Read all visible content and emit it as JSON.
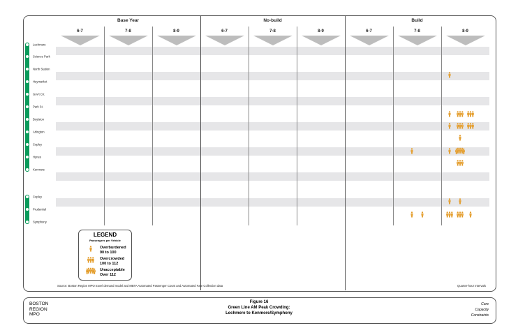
{
  "colors": {
    "line": "#0a9a5a",
    "icon": "#e39a25",
    "band": "#e6e6e8",
    "triangle": "#bdbdbd"
  },
  "groups": [
    {
      "label": "Base Year",
      "hours": [
        "6-7",
        "7-8",
        "8-9"
      ]
    },
    {
      "label": "No-build",
      "hours": [
        "6-7",
        "7-8",
        "8-9"
      ]
    },
    {
      "label": "Build",
      "hours": [
        "6-7",
        "7-8",
        "8-9"
      ]
    }
  ],
  "stations_main": [
    "Lechmere",
    "Science Park",
    "North Station",
    "Haymarket",
    "Gov't Ctr.",
    "Park St.",
    "Boylston",
    "Arlington",
    "Copley",
    "Hynes",
    "Kenmore"
  ],
  "stations_branch": [
    "Copley",
    "Prudential",
    "Symphony"
  ],
  "crowding": [
    {
      "segment": "North Station-Haymarket",
      "group": 2,
      "hour": 2,
      "quarter": 1,
      "level": "overburdened"
    },
    {
      "segment": "Park St.-Boylston",
      "group": 2,
      "hour": 2,
      "quarter": 1,
      "level": "overburdened"
    },
    {
      "segment": "Park St.-Boylston",
      "group": 2,
      "hour": 2,
      "quarter": 2,
      "level": "overcrowded"
    },
    {
      "segment": "Park St.-Boylston",
      "group": 2,
      "hour": 2,
      "quarter": 3,
      "level": "overcrowded"
    },
    {
      "segment": "Boylston-Arlington",
      "group": 2,
      "hour": 2,
      "quarter": 1,
      "level": "overburdened"
    },
    {
      "segment": "Boylston-Arlington",
      "group": 2,
      "hour": 2,
      "quarter": 2,
      "level": "overcrowded"
    },
    {
      "segment": "Boylston-Arlington",
      "group": 2,
      "hour": 2,
      "quarter": 3,
      "level": "overcrowded"
    },
    {
      "segment": "Arlington-Copley",
      "group": 2,
      "hour": 2,
      "quarter": 2,
      "level": "overburdened"
    },
    {
      "segment": "Copley-Hynes",
      "group": 2,
      "hour": 1,
      "quarter": 2,
      "level": "overburdened"
    },
    {
      "segment": "Copley-Hynes",
      "group": 2,
      "hour": 2,
      "quarter": 1,
      "level": "overburdened"
    },
    {
      "segment": "Copley-Hynes",
      "group": 2,
      "hour": 2,
      "quarter": 2,
      "level": "unacceptable"
    },
    {
      "segment": "Hynes-Kenmore",
      "group": 2,
      "hour": 2,
      "quarter": 2,
      "level": "overcrowded"
    },
    {
      "segment": "Copley-Prudential",
      "group": 2,
      "hour": 2,
      "quarter": 1,
      "level": "overburdened"
    },
    {
      "segment": "Copley-Prudential",
      "group": 2,
      "hour": 2,
      "quarter": 2,
      "level": "overburdened"
    },
    {
      "segment": "Prudential-Symphony",
      "group": 2,
      "hour": 1,
      "quarter": 2,
      "level": "overburdened"
    },
    {
      "segment": "Prudential-Symphony",
      "group": 2,
      "hour": 1,
      "quarter": 3,
      "level": "overburdened"
    },
    {
      "segment": "Prudential-Symphony",
      "group": 2,
      "hour": 2,
      "quarter": 1,
      "level": "overcrowded"
    },
    {
      "segment": "Prudential-Symphony",
      "group": 2,
      "hour": 2,
      "quarter": 2,
      "level": "overcrowded"
    },
    {
      "segment": "Prudential-Symphony",
      "group": 2,
      "hour": 2,
      "quarter": 3,
      "level": "overburdened"
    }
  ],
  "legend": {
    "title": "LEGEND",
    "subtitle": "Passengers per Vehicle",
    "items": [
      {
        "level": "overburdened",
        "label": "Overburdened",
        "range": "90 to 100"
      },
      {
        "level": "overcrowded",
        "label": "Overcrowded",
        "range": "100 to 112"
      },
      {
        "level": "unacceptable",
        "label": "Unacceptable",
        "range": "Over 112"
      }
    ]
  },
  "source": "Source: Boston Region MPO travel demand model and MBTA Automated Passenger Count and Automated Fare Collection data",
  "interval_note": "Quarter-hour Intervals",
  "footer": {
    "org": [
      "BOSTON",
      "REGION",
      "MPO"
    ],
    "figure": "Figure 16",
    "title1": "Green Line AM Peak Crowding:",
    "title2": "Lechmere to Kenmore/Symphony",
    "tags": [
      "Core",
      "Capacity",
      "Constraints"
    ]
  }
}
